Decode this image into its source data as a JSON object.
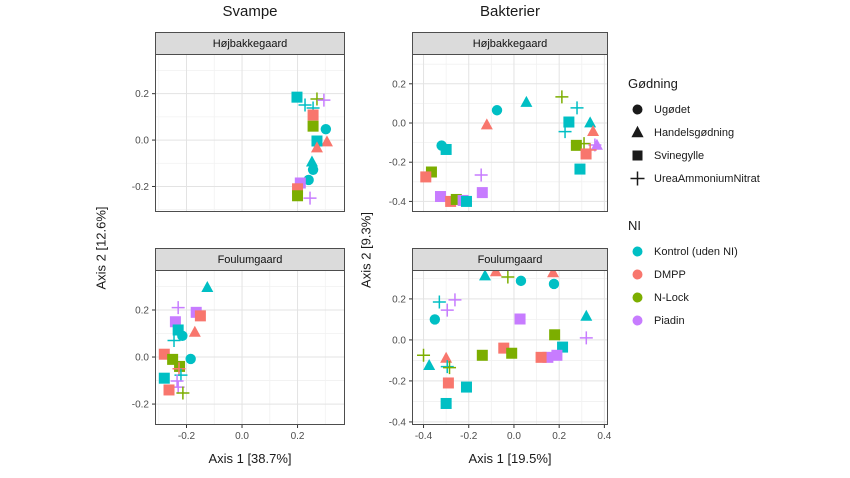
{
  "figure": {
    "columns": [
      {
        "title": "Svampe",
        "x_label": "Axis 1 [38.7%]",
        "y_label": "Axis 2 [12.6%]"
      },
      {
        "title": "Bakterier",
        "x_label": "Axis 1 [19.5%]",
        "y_label": "Axis 2 [9.3%]"
      }
    ]
  },
  "colors": {
    "kontrol": "#00BFC4",
    "dmpp": "#F8766D",
    "nlock": "#7CAE00",
    "piadin": "#C77CFF"
  },
  "legend": {
    "godning": {
      "title": "Gødning",
      "items": [
        {
          "label": "Ugødet",
          "shape": "circle"
        },
        {
          "label": "Handelsgødning",
          "shape": "triangle"
        },
        {
          "label": "Svinegylle",
          "shape": "square"
        },
        {
          "label": "UreaAmmoniumNitrat",
          "shape": "plus"
        }
      ]
    },
    "ni": {
      "title": "NI",
      "items": [
        {
          "label": "Kontrol (uden NI)",
          "color_key": "kontrol"
        },
        {
          "label": "DMPP",
          "color_key": "dmpp"
        },
        {
          "label": "N-Lock",
          "color_key": "nlock"
        },
        {
          "label": "Piadin",
          "color_key": "piadin"
        }
      ]
    }
  },
  "chart_data": [
    {
      "type": "scatter",
      "column": "Svampe",
      "facet": "Højbakkegaard",
      "x_domain": [
        -0.3135,
        0.371
      ],
      "y_domain": [
        -0.31,
        0.371
      ],
      "x_ticks": [
        -0.2,
        0.0,
        0.2
      ],
      "y_ticks": [
        0.2,
        0.0,
        -0.2
      ],
      "show_x_tick_labels": false,
      "points": [
        {
          "x": 0.198,
          "y": 0.185,
          "shape": "square",
          "ni": "kontrol"
        },
        {
          "x": 0.27,
          "y": 0.177,
          "shape": "plus",
          "ni": "nlock"
        },
        {
          "x": 0.295,
          "y": 0.172,
          "shape": "plus",
          "ni": "piadin"
        },
        {
          "x": 0.227,
          "y": 0.151,
          "shape": "plus",
          "ni": "kontrol"
        },
        {
          "x": 0.256,
          "y": 0.138,
          "shape": "plus",
          "ni": "kontrol"
        },
        {
          "x": 0.256,
          "y": 0.108,
          "shape": "square",
          "ni": "dmpp"
        },
        {
          "x": 0.256,
          "y": 0.06,
          "shape": "square",
          "ni": "nlock"
        },
        {
          "x": 0.302,
          "y": 0.047,
          "shape": "circle",
          "ni": "kontrol"
        },
        {
          "x": 0.306,
          "y": -0.008,
          "shape": "triangle",
          "ni": "dmpp"
        },
        {
          "x": 0.27,
          "y": -0.004,
          "shape": "square",
          "ni": "kontrol"
        },
        {
          "x": 0.27,
          "y": -0.034,
          "shape": "triangle",
          "ni": "dmpp"
        },
        {
          "x": 0.252,
          "y": -0.095,
          "shape": "triangle",
          "ni": "kontrol"
        },
        {
          "x": 0.256,
          "y": -0.128,
          "shape": "circle",
          "ni": "kontrol"
        },
        {
          "x": 0.24,
          "y": -0.172,
          "shape": "circle",
          "ni": "kontrol"
        },
        {
          "x": 0.21,
          "y": -0.185,
          "shape": "square",
          "ni": "piadin"
        },
        {
          "x": 0.2,
          "y": -0.21,
          "shape": "square",
          "ni": "dmpp"
        },
        {
          "x": 0.2,
          "y": -0.24,
          "shape": "square",
          "ni": "nlock"
        },
        {
          "x": 0.245,
          "y": -0.25,
          "shape": "plus",
          "ni": "piadin"
        }
      ]
    },
    {
      "type": "scatter",
      "column": "Svampe",
      "facet": "Foulumgaard",
      "x_domain": [
        -0.3135,
        0.371
      ],
      "y_domain": [
        -0.289,
        0.37
      ],
      "x_ticks": [
        -0.2,
        0.0,
        0.2
      ],
      "y_ticks": [
        0.2,
        0.0,
        -0.2
      ],
      "show_x_tick_labels": true,
      "points": [
        {
          "x": -0.125,
          "y": 0.295,
          "shape": "triangle",
          "ni": "kontrol"
        },
        {
          "x": -0.23,
          "y": 0.21,
          "shape": "plus",
          "ni": "piadin"
        },
        {
          "x": -0.165,
          "y": 0.19,
          "shape": "square",
          "ni": "piadin"
        },
        {
          "x": -0.15,
          "y": 0.175,
          "shape": "square",
          "ni": "dmpp"
        },
        {
          "x": -0.24,
          "y": 0.15,
          "shape": "square",
          "ni": "piadin"
        },
        {
          "x": -0.23,
          "y": 0.115,
          "shape": "square",
          "ni": "kontrol"
        },
        {
          "x": -0.17,
          "y": 0.105,
          "shape": "triangle",
          "ni": "dmpp"
        },
        {
          "x": -0.215,
          "y": 0.09,
          "shape": "circle",
          "ni": "kontrol"
        },
        {
          "x": -0.245,
          "y": 0.07,
          "shape": "plus",
          "ni": "kontrol"
        },
        {
          "x": -0.28,
          "y": 0.012,
          "shape": "square",
          "ni": "dmpp"
        },
        {
          "x": -0.25,
          "y": -0.01,
          "shape": "square",
          "ni": "nlock"
        },
        {
          "x": -0.225,
          "y": -0.04,
          "shape": "square",
          "ni": "nlock"
        },
        {
          "x": -0.185,
          "y": -0.008,
          "shape": "circle",
          "ni": "kontrol"
        },
        {
          "x": -0.227,
          "y": -0.05,
          "shape": "plus",
          "ni": "dmpp"
        },
        {
          "x": -0.22,
          "y": -0.077,
          "shape": "plus",
          "ni": "kontrol"
        },
        {
          "x": -0.28,
          "y": -0.09,
          "shape": "square",
          "ni": "kontrol"
        },
        {
          "x": -0.234,
          "y": -0.102,
          "shape": "plus",
          "ni": "piadin"
        },
        {
          "x": -0.23,
          "y": -0.128,
          "shape": "plus",
          "ni": "piadin"
        },
        {
          "x": -0.263,
          "y": -0.14,
          "shape": "square",
          "ni": "dmpp"
        },
        {
          "x": -0.213,
          "y": -0.153,
          "shape": "plus",
          "ni": "nlock"
        }
      ]
    },
    {
      "type": "scatter",
      "column": "Bakterier",
      "facet": "Højbakkegaard",
      "x_domain": [
        -0.451,
        0.416
      ],
      "y_domain": [
        -0.454,
        0.352
      ],
      "x_ticks": [
        -0.4,
        -0.2,
        0.0,
        0.2,
        0.4
      ],
      "y_ticks": [
        0.2,
        0.0,
        -0.2,
        -0.4
      ],
      "show_x_tick_labels": false,
      "points": [
        {
          "x": -0.32,
          "y": -0.115,
          "shape": "circle",
          "ni": "kontrol"
        },
        {
          "x": -0.3,
          "y": -0.135,
          "shape": "square",
          "ni": "kontrol"
        },
        {
          "x": -0.365,
          "y": -0.25,
          "shape": "square",
          "ni": "nlock"
        },
        {
          "x": -0.39,
          "y": -0.275,
          "shape": "square",
          "ni": "dmpp"
        },
        {
          "x": -0.325,
          "y": -0.375,
          "shape": "square",
          "ni": "piadin"
        },
        {
          "x": -0.28,
          "y": -0.4,
          "shape": "square",
          "ni": "dmpp"
        },
        {
          "x": -0.255,
          "y": -0.39,
          "shape": "square",
          "ni": "nlock"
        },
        {
          "x": -0.225,
          "y": -0.395,
          "shape": "square",
          "ni": "piadin"
        },
        {
          "x": -0.21,
          "y": -0.4,
          "shape": "square",
          "ni": "kontrol"
        },
        {
          "x": -0.145,
          "y": -0.265,
          "shape": "plus",
          "ni": "piadin"
        },
        {
          "x": -0.14,
          "y": -0.355,
          "shape": "square",
          "ni": "piadin"
        },
        {
          "x": -0.12,
          "y": -0.01,
          "shape": "triangle",
          "ni": "dmpp"
        },
        {
          "x": -0.075,
          "y": 0.065,
          "shape": "circle",
          "ni": "kontrol"
        },
        {
          "x": 0.055,
          "y": 0.105,
          "shape": "triangle",
          "ni": "kontrol"
        },
        {
          "x": 0.212,
          "y": 0.133,
          "shape": "plus",
          "ni": "nlock"
        },
        {
          "x": 0.279,
          "y": 0.077,
          "shape": "plus",
          "ni": "kontrol"
        },
        {
          "x": 0.243,
          "y": 0.005,
          "shape": "square",
          "ni": "kontrol"
        },
        {
          "x": 0.226,
          "y": -0.044,
          "shape": "plus",
          "ni": "kontrol"
        },
        {
          "x": 0.337,
          "y": 0.0,
          "shape": "triangle",
          "ni": "kontrol"
        },
        {
          "x": 0.35,
          "y": -0.044,
          "shape": "triangle",
          "ni": "dmpp"
        },
        {
          "x": 0.276,
          "y": -0.114,
          "shape": "square",
          "ni": "nlock"
        },
        {
          "x": 0.31,
          "y": -0.105,
          "shape": "plus",
          "ni": "nlock"
        },
        {
          "x": 0.367,
          "y": -0.114,
          "shape": "triangle",
          "ni": "piadin"
        },
        {
          "x": 0.358,
          "y": -0.112,
          "shape": "plus",
          "ni": "piadin"
        },
        {
          "x": 0.337,
          "y": -0.138,
          "shape": "plus",
          "ni": "dmpp"
        },
        {
          "x": 0.319,
          "y": -0.158,
          "shape": "square",
          "ni": "dmpp"
        },
        {
          "x": 0.292,
          "y": -0.235,
          "shape": "square",
          "ni": "kontrol"
        }
      ]
    },
    {
      "type": "scatter",
      "column": "Bakterier",
      "facet": "Foulumgaard",
      "x_domain": [
        -0.451,
        0.416
      ],
      "y_domain": [
        -0.415,
        0.341
      ],
      "x_ticks": [
        -0.4,
        -0.2,
        0.0,
        0.2,
        0.4
      ],
      "y_ticks": [
        0.2,
        0.0,
        -0.2,
        -0.4
      ],
      "show_x_tick_labels": true,
      "points": [
        {
          "x": -0.128,
          "y": 0.312,
          "shape": "triangle",
          "ni": "kontrol"
        },
        {
          "x": -0.08,
          "y": 0.332,
          "shape": "triangle",
          "ni": "dmpp"
        },
        {
          "x": -0.027,
          "y": 0.307,
          "shape": "plus",
          "ni": "nlock"
        },
        {
          "x": 0.031,
          "y": 0.288,
          "shape": "circle",
          "ni": "kontrol"
        },
        {
          "x": 0.173,
          "y": 0.327,
          "shape": "triangle",
          "ni": "dmpp"
        },
        {
          "x": 0.177,
          "y": 0.273,
          "shape": "circle",
          "ni": "kontrol"
        },
        {
          "x": -0.33,
          "y": 0.185,
          "shape": "plus",
          "ni": "kontrol"
        },
        {
          "x": -0.261,
          "y": 0.195,
          "shape": "plus",
          "ni": "piadin"
        },
        {
          "x": -0.295,
          "y": 0.145,
          "shape": "plus",
          "ni": "piadin"
        },
        {
          "x": -0.35,
          "y": 0.1,
          "shape": "circle",
          "ni": "kontrol"
        },
        {
          "x": 0.32,
          "y": 0.115,
          "shape": "triangle",
          "ni": "kontrol"
        },
        {
          "x": 0.027,
          "y": 0.102,
          "shape": "square",
          "ni": "piadin"
        },
        {
          "x": 0.18,
          "y": 0.025,
          "shape": "square",
          "ni": "nlock"
        },
        {
          "x": 0.32,
          "y": 0.01,
          "shape": "plus",
          "ni": "piadin"
        },
        {
          "x": 0.215,
          "y": -0.035,
          "shape": "square",
          "ni": "kontrol"
        },
        {
          "x": 0.15,
          "y": -0.085,
          "shape": "square",
          "ni": "piadin"
        },
        {
          "x": 0.19,
          "y": -0.075,
          "shape": "square",
          "ni": "piadin"
        },
        {
          "x": -0.045,
          "y": -0.04,
          "shape": "square",
          "ni": "dmpp"
        },
        {
          "x": -0.01,
          "y": -0.065,
          "shape": "square",
          "ni": "nlock"
        },
        {
          "x": 0.12,
          "y": -0.085,
          "shape": "square",
          "ni": "dmpp"
        },
        {
          "x": -0.14,
          "y": -0.075,
          "shape": "square",
          "ni": "nlock"
        },
        {
          "x": -0.4,
          "y": -0.075,
          "shape": "plus",
          "ni": "nlock"
        },
        {
          "x": -0.375,
          "y": -0.125,
          "shape": "triangle",
          "ni": "kontrol"
        },
        {
          "x": -0.3,
          "y": -0.09,
          "shape": "triangle",
          "ni": "dmpp"
        },
        {
          "x": -0.295,
          "y": -0.13,
          "shape": "plus",
          "ni": "kontrol"
        },
        {
          "x": -0.285,
          "y": -0.135,
          "shape": "plus",
          "ni": "nlock"
        },
        {
          "x": -0.29,
          "y": -0.21,
          "shape": "square",
          "ni": "dmpp"
        },
        {
          "x": -0.21,
          "y": -0.23,
          "shape": "square",
          "ni": "kontrol"
        },
        {
          "x": -0.3,
          "y": -0.31,
          "shape": "square",
          "ni": "kontrol"
        }
      ]
    }
  ]
}
